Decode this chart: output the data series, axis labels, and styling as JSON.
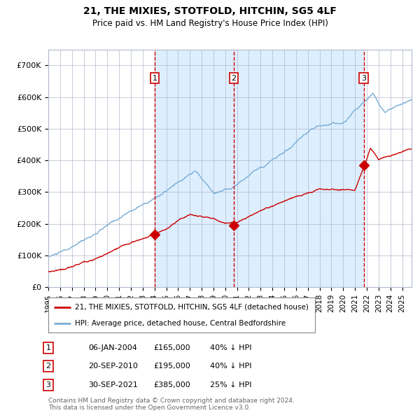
{
  "title1": "21, THE MIXIES, STOTFOLD, HITCHIN, SG5 4LF",
  "title2": "Price paid vs. HM Land Registry's House Price Index (HPI)",
  "ylim": [
    0,
    750000
  ],
  "xlim_start": 1995.0,
  "xlim_end": 2025.8,
  "yticks": [
    0,
    100000,
    200000,
    300000,
    400000,
    500000,
    600000,
    700000
  ],
  "ytick_labels": [
    "£0",
    "£100K",
    "£200K",
    "£300K",
    "£400K",
    "£500K",
    "£600K",
    "£700K"
  ],
  "sale_dates": [
    2004.02,
    2010.72,
    2021.75
  ],
  "sale_prices": [
    165000,
    195000,
    385000
  ],
  "sale_labels": [
    "1",
    "2",
    "3"
  ],
  "sale_date_strs": [
    "06-JAN-2004",
    "20-SEP-2010",
    "30-SEP-2021"
  ],
  "sale_price_strs": [
    "£165,000",
    "£195,000",
    "£385,000"
  ],
  "sale_discount_strs": [
    "40% ↓ HPI",
    "40% ↓ HPI",
    "25% ↓ HPI"
  ],
  "hpi_color": "#7aadd4",
  "price_color": "#cc0000",
  "shade_color": "#ddeeff",
  "grid_color": "#b0b8cc",
  "bg_color": "#ffffff",
  "legend_label_price": "21, THE MIXIES, STOTFOLD, HITCHIN, SG5 4LF (detached house)",
  "legend_label_hpi": "HPI: Average price, detached house, Central Bedfordshire",
  "footnote": "Contains HM Land Registry data © Crown copyright and database right 2024.\nThis data is licensed under the Open Government Licence v3.0."
}
